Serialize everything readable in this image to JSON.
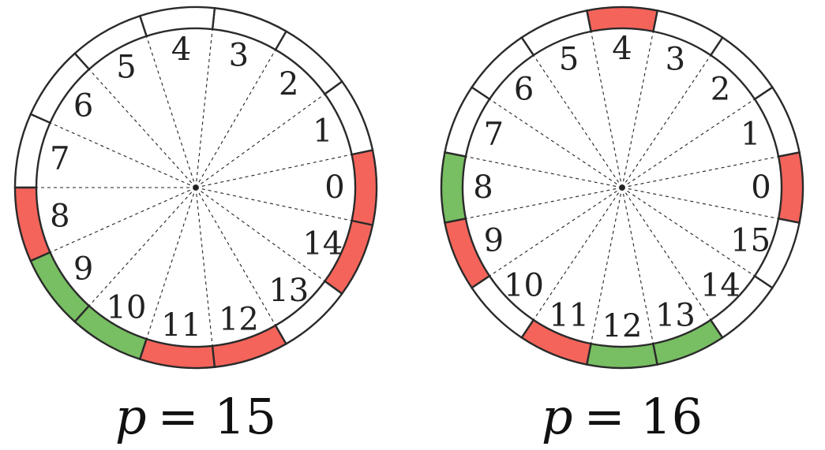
{
  "colors": {
    "red": "#f4645a",
    "green": "#78be62",
    "empty": "#ffffff",
    "stroke": "#2a2a2a"
  },
  "wheels": [
    {
      "p": 15,
      "caption_var": "p",
      "caption_eq": "= 15",
      "segments": [
        "red",
        "empty",
        "empty",
        "empty",
        "empty",
        "empty",
        "empty",
        "empty",
        "red",
        "green",
        "green",
        "red",
        "red",
        "empty",
        "red"
      ]
    },
    {
      "p": 16,
      "caption_var": "p",
      "caption_eq": "= 16",
      "segments": [
        "red",
        "empty",
        "empty",
        "empty",
        "red",
        "empty",
        "empty",
        "empty",
        "green",
        "red",
        "empty",
        "red",
        "green",
        "green",
        "empty",
        "empty"
      ]
    }
  ]
}
